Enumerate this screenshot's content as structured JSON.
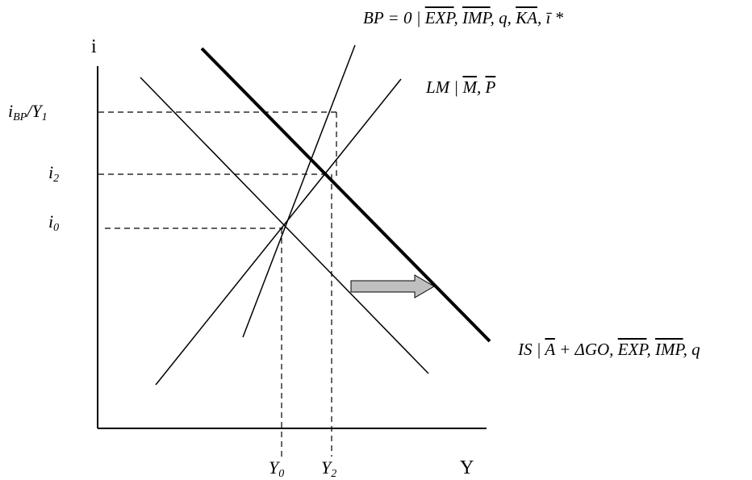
{
  "axes": {
    "y_axis_label": "i",
    "x_axis_label": "Y"
  },
  "ticks": {
    "y0": {
      "base": "Y",
      "sub": "0"
    },
    "y2": {
      "base": "Y",
      "sub": "2"
    },
    "ibp": {
      "base": "i",
      "sub": "BP",
      "rest": "/Y",
      "rest_sub": "1"
    },
    "i2": {
      "base": "i",
      "sub": "2"
    },
    "i0": {
      "base": "i",
      "sub": "0"
    }
  },
  "curves": {
    "bp": {
      "prefix": "BP = 0 | ",
      "exp": "EXP",
      "imp": "IMP",
      "q": "q",
      "ka": "KA",
      "istar": "ī *"
    },
    "lm": {
      "prefix": "LM | ",
      "m": "M",
      "p": "P"
    },
    "is": {
      "prefix": "IS | ",
      "a": "A",
      "dgo": " + ΔGO, ",
      "exp": "EXP",
      "imp": "IMP",
      "q": "q"
    }
  },
  "colors": {
    "line": "#000000",
    "arrow_fill": "#bfbfbf",
    "arrow_stroke": "#000000"
  }
}
